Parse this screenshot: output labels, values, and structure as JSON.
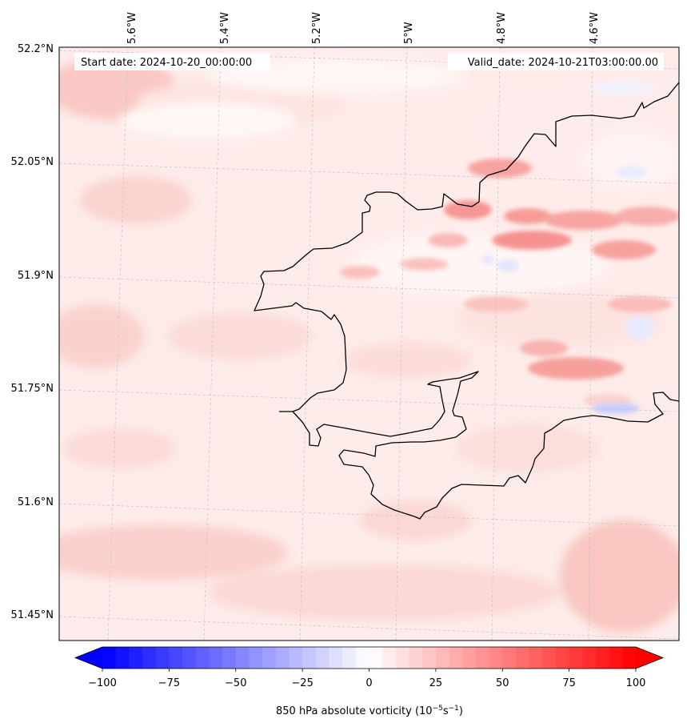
{
  "header": {
    "start_date": "Start date: 2024-10-20_00:00:00",
    "valid_date": "Valid_date: 2024-10-21T03:00:00.00"
  },
  "axes": {
    "lon_labels": [
      "5.6°W",
      "5.4°W",
      "5.2°W",
      "5°W",
      "4.8°W",
      "4.6°W"
    ],
    "lat_labels": [
      "52.2°N",
      "52.05°N",
      "51.9°N",
      "51.75°N",
      "51.6°N",
      "51.45°N"
    ]
  },
  "colorbar": {
    "ticks": [
      "−100",
      "−75",
      "−50",
      "−25",
      "0",
      "25",
      "50",
      "75",
      "100"
    ],
    "title_main": "850 hPa absolute vorticity (10",
    "title_exp1": "−5",
    "title_mid": "s",
    "title_exp2": "−1",
    "title_end": ")",
    "range": [
      -100,
      100
    ],
    "levels": 41,
    "colormap": "bwr",
    "color_min": "#0000ff",
    "color_mid": "#ffffff",
    "color_max": "#ff0000"
  },
  "map": {
    "background_color": "#fdecea",
    "coastline_color": "#000000",
    "gridline_color": "#bbbbbb"
  }
}
